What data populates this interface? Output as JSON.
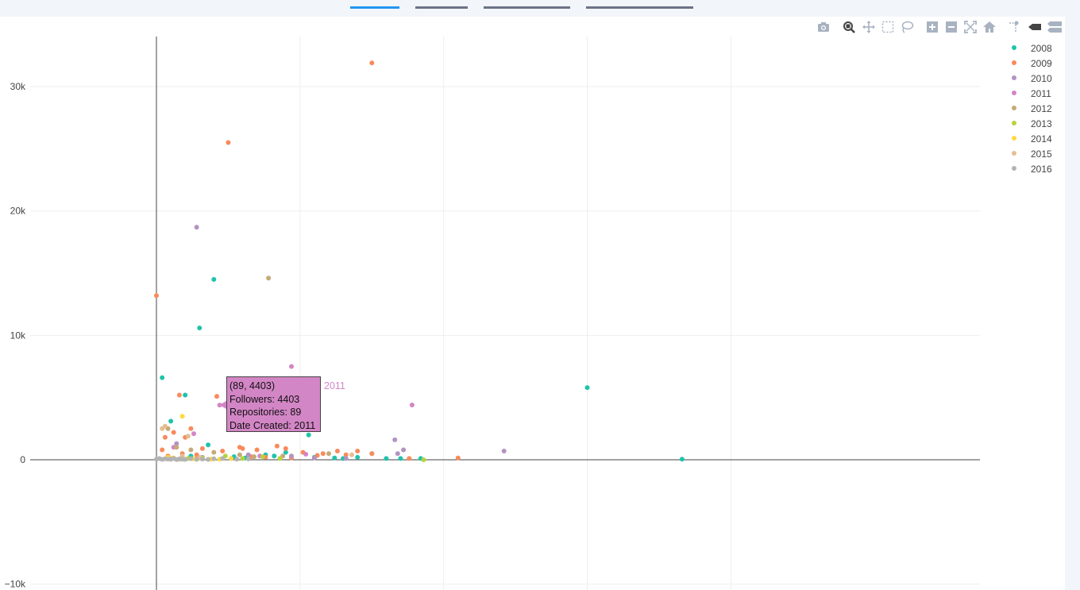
{
  "tabs": [
    {
      "label": "",
      "active": true
    },
    {
      "label": "",
      "active": false
    },
    {
      "label": "",
      "active": false
    },
    {
      "label": "",
      "active": false
    }
  ],
  "modebar": {
    "buttons": [
      "camera-icon",
      "zoom-icon",
      "pan-icon",
      "box-select-icon",
      "lasso-select-icon",
      "zoom-in-icon",
      "zoom-out-icon",
      "autoscale-icon",
      "reset-axes-icon",
      "spike-lines-icon",
      "hover-closest-icon",
      "hover-compare-icon"
    ]
  },
  "chart_data": {
    "type": "scatter",
    "title": "",
    "xlabel": "",
    "ylabel": "",
    "xlim": [
      -20,
      230
    ],
    "ylim": [
      -10000,
      35000
    ],
    "yticks": [
      -10000,
      0,
      10000,
      20000,
      30000
    ],
    "ytick_labels": [
      "−10k",
      "0",
      "10k",
      "20k",
      "30k"
    ],
    "xgrid": [
      50,
      100,
      150,
      200
    ],
    "grid": true,
    "legend_position": "top-right",
    "series": [
      {
        "name": "2008",
        "color": "#1fc3aa",
        "x": [
          2,
          5,
          10,
          15,
          20,
          18,
          45,
          53,
          38,
          65,
          75,
          85,
          92,
          150,
          183,
          12,
          27,
          31,
          41,
          55,
          62,
          70,
          80
        ],
        "y": [
          6600,
          3100,
          5200,
          10600,
          14500,
          1200,
          600,
          2000,
          400,
          100,
          500,
          100,
          100,
          5800,
          50,
          300,
          250,
          150,
          300,
          200,
          150,
          200,
          100
        ]
      },
      {
        "name": "2009",
        "color": "#f98a5c",
        "x": [
          0,
          25,
          75,
          8,
          21,
          12,
          6,
          3,
          10,
          29,
          16,
          2,
          30,
          35,
          42,
          58,
          56,
          63,
          70,
          75,
          88,
          105,
          23,
          45,
          51,
          4,
          9,
          14,
          33,
          47,
          38,
          66
        ],
        "y": [
          13200,
          25500,
          31900,
          5200,
          5100,
          2500,
          2200,
          1800,
          1800,
          1000,
          900,
          800,
          900,
          800,
          1100,
          500,
          350,
          700,
          700,
          500,
          100,
          150,
          700,
          900,
          600,
          300,
          500,
          400,
          250,
          150,
          200,
          400
        ]
      },
      {
        "name": "2010",
        "color": "#b393c3",
        "x": [
          14,
          83,
          84,
          86,
          121,
          7,
          16,
          32,
          47,
          55,
          66
        ],
        "y": [
          18700,
          1600,
          500,
          800,
          700,
          1300,
          200,
          400,
          300,
          150,
          100
        ]
      },
      {
        "name": "2011",
        "color": "#d386c6",
        "x": [
          47,
          89,
          22,
          6,
          13,
          36,
          52
        ],
        "y": [
          7500,
          4403,
          4400,
          1000,
          2100,
          300,
          450
        ]
      },
      {
        "name": "2012",
        "color": "#c5aa78",
        "x": [
          39,
          12,
          4,
          7,
          20,
          29,
          44,
          60,
          34
        ],
        "y": [
          14600,
          800,
          2500,
          1000,
          600,
          400,
          300,
          500,
          250
        ]
      },
      {
        "name": "2013",
        "color": "#b7d33c",
        "x": [
          93,
          5,
          11,
          16,
          24,
          30,
          37,
          43,
          8
        ],
        "y": [
          0,
          100,
          100,
          150,
          300,
          100,
          250,
          100,
          50
        ]
      },
      {
        "name": "2014",
        "color": "#ffd93f",
        "x": [
          9,
          4,
          6,
          15,
          22,
          26,
          13,
          19
        ],
        "y": [
          3500,
          200,
          150,
          100,
          50,
          100,
          80,
          60
        ]
      },
      {
        "name": "2015",
        "color": "#e4be92",
        "x": [
          2,
          3,
          11,
          50,
          68,
          9,
          15
        ],
        "y": [
          2500,
          2700,
          1900,
          2600,
          400,
          300,
          200
        ]
      },
      {
        "name": "2016",
        "color": "#b3b3b3",
        "x": [
          0,
          1,
          2,
          3,
          4,
          5,
          6,
          7,
          8,
          9,
          10,
          12,
          14,
          16,
          18,
          20,
          23,
          28,
          32
        ],
        "y": [
          50,
          100,
          30,
          80,
          60,
          40,
          100,
          20,
          70,
          50,
          30,
          90,
          40,
          60,
          30,
          80,
          100,
          50,
          70
        ]
      }
    ]
  },
  "tooltip": {
    "line1": "(89, 4403)",
    "line2": "Followers: 4403",
    "line3": "Repositories: 89",
    "line4": "Date Created: 2011",
    "series_name": "2011",
    "color": "#d386c6"
  }
}
